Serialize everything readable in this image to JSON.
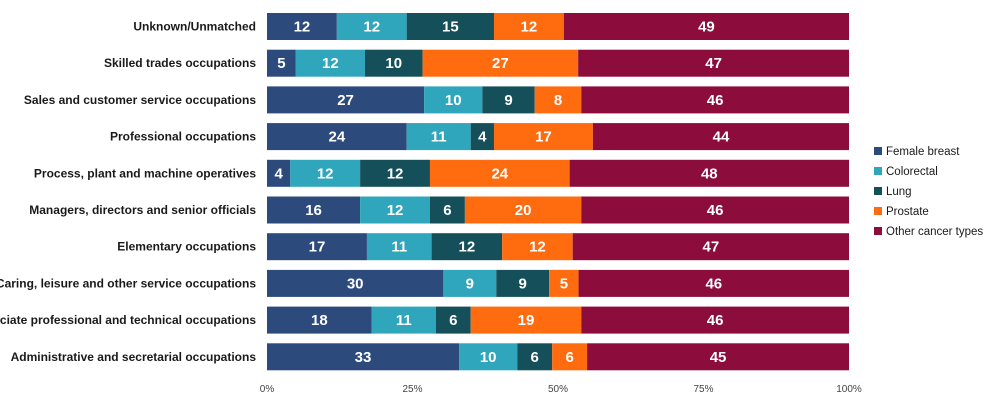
{
  "chart_data": {
    "type": "bar",
    "orientation": "horizontal",
    "stacked": "percent",
    "title": "",
    "xlabel": "",
    "ylabel": "",
    "xlim": [
      0,
      100
    ],
    "x_ticks": [
      "0%",
      "25%",
      "50%",
      "75%",
      "100%"
    ],
    "grid": false,
    "legend_position": "right",
    "categories": [
      "Unknown/Unmatched",
      "Skilled trades occupations",
      "Sales and customer service occupations",
      "Professional occupations",
      "Process, plant and machine operatives",
      "Managers, directors and senior officials",
      "Elementary occupations",
      "Caring, leisure and other service occupations",
      "Associate professional and technical occupations",
      "Administrative and secretarial occupations"
    ],
    "series": [
      {
        "name": "Female breast",
        "color": "#2d4a7c",
        "values": [
          12,
          5,
          27,
          24,
          4,
          16,
          17,
          30,
          18,
          33
        ]
      },
      {
        "name": "Colorectal",
        "color": "#2fa6bb",
        "values": [
          12,
          12,
          10,
          11,
          12,
          12,
          11,
          9,
          11,
          10
        ]
      },
      {
        "name": "Lung",
        "color": "#15505a",
        "values": [
          15,
          10,
          9,
          4,
          12,
          6,
          12,
          9,
          6,
          6
        ]
      },
      {
        "name": "Prostate",
        "color": "#ff6b0f",
        "values": [
          12,
          27,
          8,
          17,
          24,
          20,
          12,
          5,
          19,
          6
        ]
      },
      {
        "name": "Other cancer types",
        "color": "#8c0c3c",
        "values": [
          49,
          47,
          46,
          44,
          48,
          46,
          47,
          46,
          46,
          45
        ]
      }
    ]
  }
}
